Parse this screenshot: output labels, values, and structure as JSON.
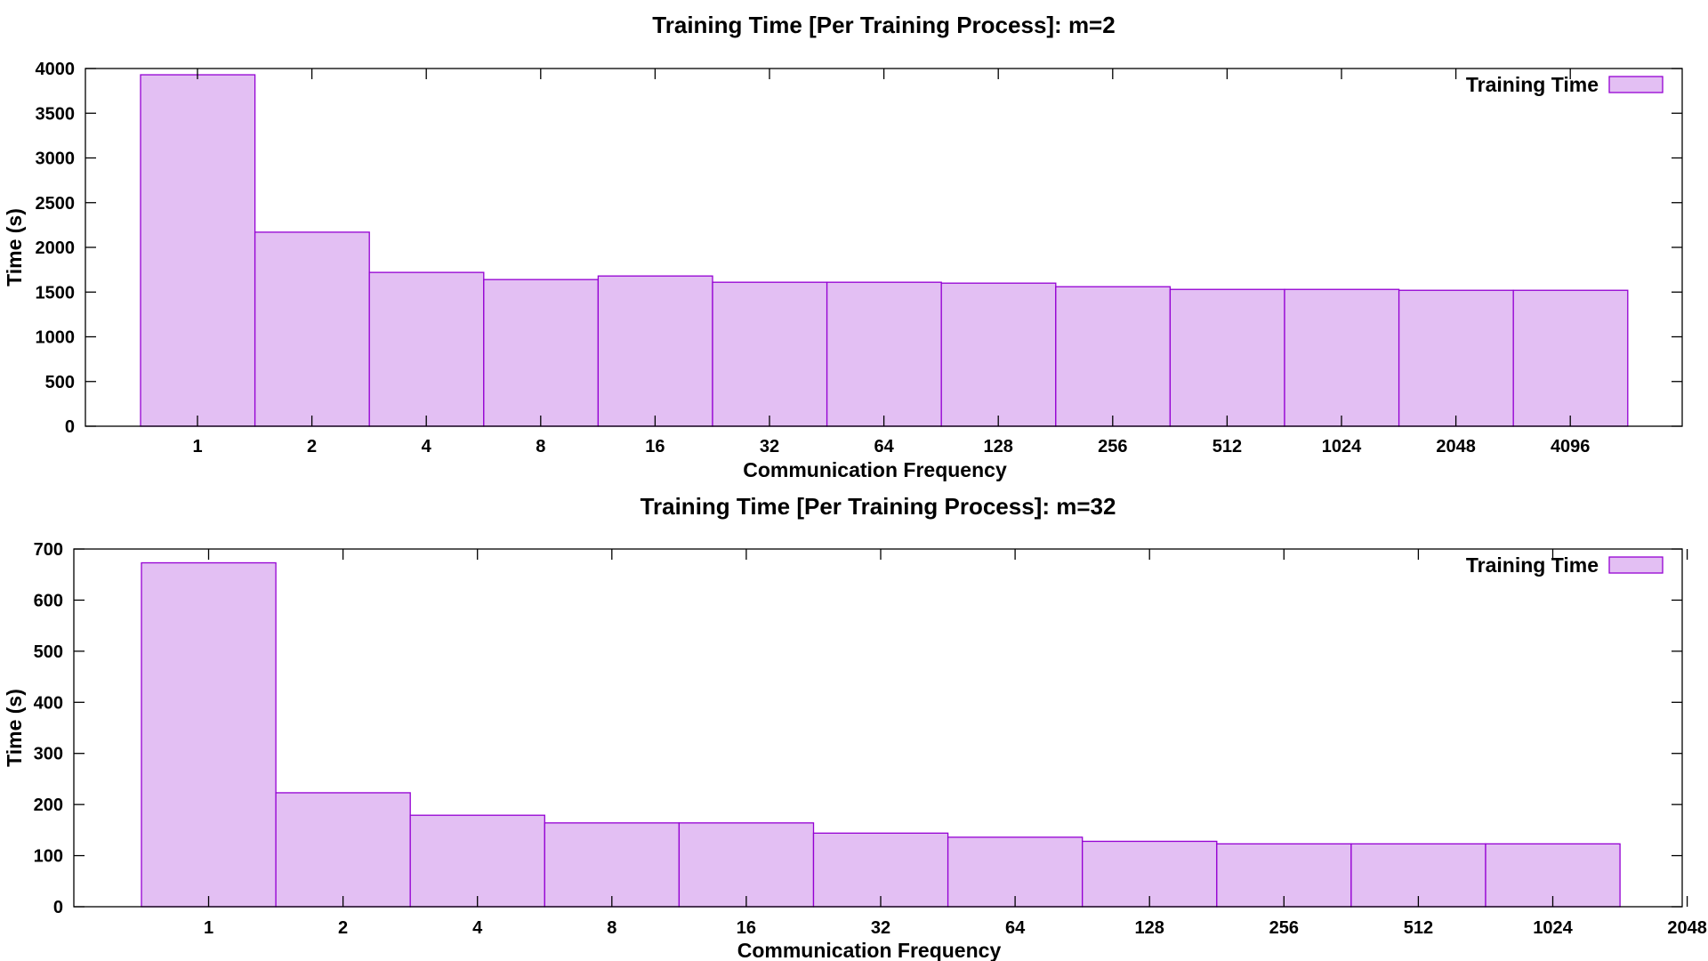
{
  "chart_data": [
    {
      "type": "bar",
      "title": "Training Time [Per Training Process]: m=2",
      "xlabel": "Communication Frequency",
      "ylabel": "Time (s)",
      "ylim": [
        0,
        4000
      ],
      "yticks": [
        0,
        500,
        1000,
        1500,
        2000,
        2500,
        3000,
        3500,
        4000
      ],
      "categories": [
        "1",
        "2",
        "4",
        "8",
        "16",
        "32",
        "64",
        "128",
        "256",
        "512",
        "1024",
        "2048",
        "4096"
      ],
      "x_tick_labels": [
        "1",
        "2",
        "4",
        "8",
        "16",
        "32",
        "64",
        "128",
        "256",
        "512",
        "1024",
        "2048",
        "4096"
      ],
      "series": [
        {
          "name": "Training Time",
          "values": [
            3930,
            2170,
            1720,
            1640,
            1680,
            1610,
            1610,
            1600,
            1560,
            1530,
            1530,
            1520,
            1520
          ]
        }
      ],
      "legend": "top-right",
      "grid": false,
      "colors": {
        "fill": "#e3bff3",
        "stroke": "#9400d3"
      }
    },
    {
      "type": "bar",
      "title": "Training Time [Per Training Process]: m=32",
      "xlabel": "Communication Frequency",
      "ylabel": "Time (s)",
      "ylim": [
        0,
        700
      ],
      "yticks": [
        0,
        100,
        200,
        300,
        400,
        500,
        600,
        700
      ],
      "categories": [
        "1",
        "2",
        "4",
        "8",
        "16",
        "32",
        "64",
        "128",
        "256",
        "512",
        "1024"
      ],
      "x_tick_labels": [
        "1",
        "2",
        "4",
        "8",
        "16",
        "32",
        "64",
        "128",
        "256",
        "512",
        "1024",
        "2048"
      ],
      "series": [
        {
          "name": "Training Time",
          "values": [
            673,
            223,
            179,
            164,
            164,
            144,
            136,
            128,
            123,
            123,
            123
          ]
        }
      ],
      "legend": "top-right",
      "grid": false,
      "colors": {
        "fill": "#e3bff3",
        "stroke": "#9400d3"
      }
    }
  ]
}
